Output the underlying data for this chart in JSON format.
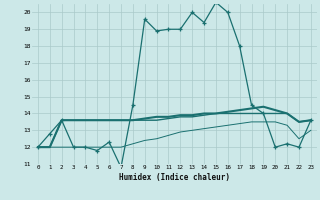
{
  "background_color": "#cce8e8",
  "grid_color": "#aacaca",
  "line_color": "#1a7070",
  "x_range": [
    -0.5,
    23.5
  ],
  "y_range": [
    11,
    20.5
  ],
  "xlabel": "Humidex (Indice chaleur)",
  "yticks": [
    11,
    12,
    13,
    14,
    15,
    16,
    17,
    18,
    19,
    20
  ],
  "xticks": [
    0,
    1,
    2,
    3,
    4,
    5,
    6,
    7,
    8,
    9,
    10,
    11,
    12,
    13,
    14,
    15,
    16,
    17,
    18,
    19,
    20,
    21,
    22,
    23
  ],
  "series1_x": [
    0,
    1,
    2,
    3,
    4,
    5,
    6,
    7,
    8,
    9,
    10,
    11,
    12,
    13,
    14,
    15,
    16,
    17,
    18,
    19,
    20,
    21,
    22,
    23
  ],
  "series1_y": [
    12.0,
    12.8,
    13.6,
    12.0,
    12.0,
    11.8,
    12.3,
    10.8,
    14.5,
    19.6,
    18.9,
    19.0,
    19.0,
    20.0,
    19.4,
    20.6,
    20.0,
    18.0,
    14.5,
    14.0,
    12.0,
    12.2,
    12.0,
    13.6
  ],
  "series2_x": [
    0,
    1,
    2,
    3,
    4,
    5,
    6,
    7,
    8,
    9,
    10,
    11,
    12,
    13,
    14,
    15,
    16,
    17,
    18,
    19,
    20,
    21,
    22,
    23
  ],
  "series2_y": [
    12.0,
    12.0,
    13.6,
    13.6,
    13.6,
    13.6,
    13.6,
    13.6,
    13.6,
    13.7,
    13.8,
    13.8,
    13.9,
    13.9,
    14.0,
    14.0,
    14.1,
    14.2,
    14.3,
    14.4,
    14.2,
    14.0,
    13.5,
    13.6
  ],
  "series3_x": [
    0,
    1,
    2,
    3,
    4,
    5,
    6,
    7,
    8,
    9,
    10,
    11,
    12,
    13,
    14,
    15,
    16,
    17,
    18,
    19,
    20,
    21,
    22,
    23
  ],
  "series3_y": [
    12.0,
    12.0,
    13.6,
    13.6,
    13.6,
    13.6,
    13.6,
    13.6,
    13.6,
    13.6,
    13.6,
    13.7,
    13.8,
    13.8,
    13.9,
    14.0,
    14.0,
    14.0,
    14.0,
    14.0,
    14.0,
    14.0,
    13.5,
    13.6
  ],
  "series4_x": [
    0,
    1,
    2,
    3,
    4,
    5,
    6,
    7,
    8,
    9,
    10,
    11,
    12,
    13,
    14,
    15,
    16,
    17,
    18,
    19,
    20,
    21,
    22,
    23
  ],
  "series4_y": [
    12.0,
    12.0,
    12.0,
    12.0,
    12.0,
    12.0,
    12.0,
    12.0,
    12.2,
    12.4,
    12.5,
    12.7,
    12.9,
    13.0,
    13.1,
    13.2,
    13.3,
    13.4,
    13.5,
    13.5,
    13.5,
    13.3,
    12.5,
    13.0
  ]
}
